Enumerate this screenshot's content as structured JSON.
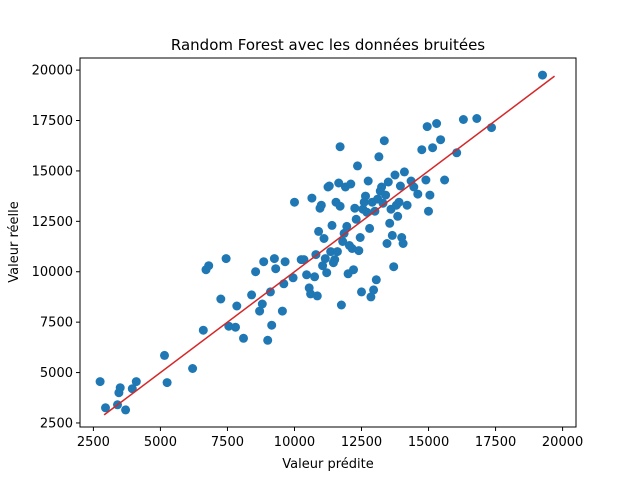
{
  "chart_data": {
    "type": "scatter",
    "title": "Random Forest avec les données bruitées",
    "xlabel": "Valeur prédite",
    "ylabel": "Valeur réelle",
    "xlim": [
      2000,
      20500
    ],
    "ylim": [
      2300,
      20600
    ],
    "xticks": [
      2500,
      5000,
      7500,
      10000,
      12500,
      15000,
      17500,
      20000
    ],
    "yticks": [
      2500,
      5000,
      7500,
      10000,
      12500,
      15000,
      17500,
      20000
    ],
    "grid": false,
    "colors": {
      "points": "#1f77b4",
      "line": "#d62728"
    },
    "points": [
      {
        "x": 2750,
        "y": 4550
      },
      {
        "x": 2950,
        "y": 3250
      },
      {
        "x": 3400,
        "y": 3400
      },
      {
        "x": 3450,
        "y": 4000
      },
      {
        "x": 3500,
        "y": 4250
      },
      {
        "x": 3700,
        "y": 3150
      },
      {
        "x": 3950,
        "y": 4200
      },
      {
        "x": 4100,
        "y": 4550
      },
      {
        "x": 5150,
        "y": 5850
      },
      {
        "x": 5250,
        "y": 4500
      },
      {
        "x": 6200,
        "y": 5200
      },
      {
        "x": 6600,
        "y": 7100
      },
      {
        "x": 6700,
        "y": 10100
      },
      {
        "x": 6800,
        "y": 10300
      },
      {
        "x": 7250,
        "y": 8650
      },
      {
        "x": 7450,
        "y": 10650
      },
      {
        "x": 7550,
        "y": 7300
      },
      {
        "x": 7800,
        "y": 7250
      },
      {
        "x": 7850,
        "y": 8300
      },
      {
        "x": 8100,
        "y": 6700
      },
      {
        "x": 8400,
        "y": 8850
      },
      {
        "x": 8550,
        "y": 10000
      },
      {
        "x": 8700,
        "y": 8050
      },
      {
        "x": 8800,
        "y": 8400
      },
      {
        "x": 8850,
        "y": 10500
      },
      {
        "x": 9000,
        "y": 6600
      },
      {
        "x": 9100,
        "y": 9000
      },
      {
        "x": 9150,
        "y": 7350
      },
      {
        "x": 9250,
        "y": 10650
      },
      {
        "x": 9300,
        "y": 10150
      },
      {
        "x": 9550,
        "y": 8050
      },
      {
        "x": 9600,
        "y": 9400
      },
      {
        "x": 9650,
        "y": 10500
      },
      {
        "x": 9950,
        "y": 9700
      },
      {
        "x": 10000,
        "y": 13450
      },
      {
        "x": 10250,
        "y": 10600
      },
      {
        "x": 10350,
        "y": 10600
      },
      {
        "x": 10450,
        "y": 9850
      },
      {
        "x": 10550,
        "y": 9200
      },
      {
        "x": 10600,
        "y": 8900
      },
      {
        "x": 10650,
        "y": 13650
      },
      {
        "x": 10750,
        "y": 9750
      },
      {
        "x": 10800,
        "y": 10850
      },
      {
        "x": 10850,
        "y": 8800
      },
      {
        "x": 10900,
        "y": 12000
      },
      {
        "x": 10950,
        "y": 13150
      },
      {
        "x": 11000,
        "y": 13300
      },
      {
        "x": 11050,
        "y": 10300
      },
      {
        "x": 11100,
        "y": 11650
      },
      {
        "x": 11150,
        "y": 10650
      },
      {
        "x": 11200,
        "y": 9950
      },
      {
        "x": 11250,
        "y": 14200
      },
      {
        "x": 11300,
        "y": 14250
      },
      {
        "x": 11350,
        "y": 11000
      },
      {
        "x": 11400,
        "y": 12300
      },
      {
        "x": 11450,
        "y": 10450
      },
      {
        "x": 11500,
        "y": 10600
      },
      {
        "x": 11550,
        "y": 13450
      },
      {
        "x": 11600,
        "y": 11000
      },
      {
        "x": 11650,
        "y": 14400
      },
      {
        "x": 11700,
        "y": 16200
      },
      {
        "x": 11700,
        "y": 13250
      },
      {
        "x": 11750,
        "y": 8350
      },
      {
        "x": 11800,
        "y": 11500
      },
      {
        "x": 11850,
        "y": 11900
      },
      {
        "x": 11900,
        "y": 14200
      },
      {
        "x": 11950,
        "y": 12250
      },
      {
        "x": 12000,
        "y": 9900
      },
      {
        "x": 12050,
        "y": 11300
      },
      {
        "x": 12100,
        "y": 14350
      },
      {
        "x": 12150,
        "y": 11150
      },
      {
        "x": 12200,
        "y": 10100
      },
      {
        "x": 12250,
        "y": 13150
      },
      {
        "x": 12300,
        "y": 12600
      },
      {
        "x": 12350,
        "y": 15250
      },
      {
        "x": 12400,
        "y": 11050
      },
      {
        "x": 12450,
        "y": 11700
      },
      {
        "x": 12500,
        "y": 9000
      },
      {
        "x": 12550,
        "y": 13100
      },
      {
        "x": 12600,
        "y": 13450
      },
      {
        "x": 12650,
        "y": 13750
      },
      {
        "x": 12700,
        "y": 12950
      },
      {
        "x": 12750,
        "y": 14500
      },
      {
        "x": 12800,
        "y": 12150
      },
      {
        "x": 12850,
        "y": 8750
      },
      {
        "x": 12900,
        "y": 13450
      },
      {
        "x": 12950,
        "y": 9100
      },
      {
        "x": 13000,
        "y": 13000
      },
      {
        "x": 13050,
        "y": 9600
      },
      {
        "x": 13100,
        "y": 13600
      },
      {
        "x": 13150,
        "y": 15700
      },
      {
        "x": 13200,
        "y": 14000
      },
      {
        "x": 13250,
        "y": 14200
      },
      {
        "x": 13300,
        "y": 13400
      },
      {
        "x": 13350,
        "y": 16500
      },
      {
        "x": 13400,
        "y": 13800
      },
      {
        "x": 13450,
        "y": 11400
      },
      {
        "x": 13500,
        "y": 14450
      },
      {
        "x": 13550,
        "y": 12400
      },
      {
        "x": 13600,
        "y": 13100
      },
      {
        "x": 13650,
        "y": 11800
      },
      {
        "x": 13700,
        "y": 10250
      },
      {
        "x": 13750,
        "y": 14800
      },
      {
        "x": 13800,
        "y": 13300
      },
      {
        "x": 13850,
        "y": 12750
      },
      {
        "x": 13900,
        "y": 13450
      },
      {
        "x": 13950,
        "y": 14250
      },
      {
        "x": 14000,
        "y": 11700
      },
      {
        "x": 14050,
        "y": 11400
      },
      {
        "x": 14100,
        "y": 14950
      },
      {
        "x": 14200,
        "y": 13300
      },
      {
        "x": 14350,
        "y": 14500
      },
      {
        "x": 14450,
        "y": 14200
      },
      {
        "x": 14600,
        "y": 13850
      },
      {
        "x": 14750,
        "y": 16050
      },
      {
        "x": 14900,
        "y": 14550
      },
      {
        "x": 14950,
        "y": 17200
      },
      {
        "x": 15000,
        "y": 13000
      },
      {
        "x": 15050,
        "y": 13800
      },
      {
        "x": 15150,
        "y": 16150
      },
      {
        "x": 15300,
        "y": 17350
      },
      {
        "x": 15450,
        "y": 16550
      },
      {
        "x": 15600,
        "y": 14550
      },
      {
        "x": 16050,
        "y": 15900
      },
      {
        "x": 16300,
        "y": 17550
      },
      {
        "x": 16800,
        "y": 17600
      },
      {
        "x": 17350,
        "y": 17150
      },
      {
        "x": 19250,
        "y": 19750
      }
    ],
    "line": [
      {
        "x": 2900,
        "y": 2900
      },
      {
        "x": 19700,
        "y": 19700
      }
    ]
  }
}
